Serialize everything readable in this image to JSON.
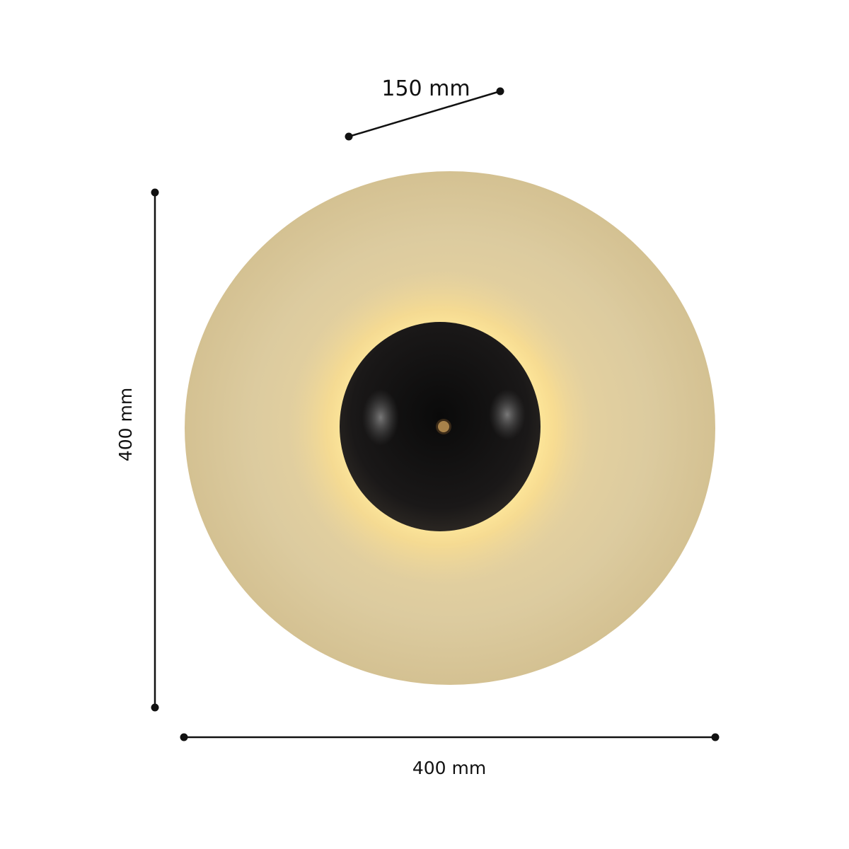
{
  "dimensions": {
    "depth_label": "150 mm",
    "height_label": "400 mm",
    "width_label": "400 mm"
  },
  "colors": {
    "disc": "#d9c79a",
    "glow": "#ffe28a",
    "dome": "#121010",
    "stud": "#a8824a",
    "lines": "#111111"
  },
  "product": {
    "type": "round-wall-lamp"
  }
}
